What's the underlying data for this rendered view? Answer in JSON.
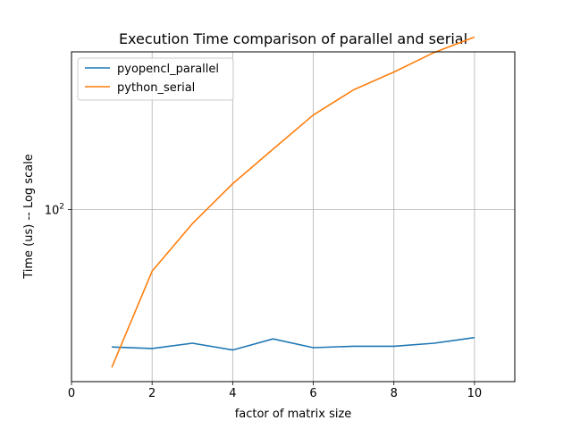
{
  "chart_data": {
    "type": "line",
    "title": "Execution Time comparison of parallel and serial",
    "xlabel": "factor of matrix size",
    "ylabel": "Time (us) -- Log scale",
    "xlim": [
      0,
      11
    ],
    "ylim": [
      24,
      370
    ],
    "yscale": "log",
    "grid": true,
    "legend_position": "top-left",
    "x_ticks": [
      0,
      2,
      4,
      6,
      8,
      10
    ],
    "y_ticks": [
      {
        "value": 100,
        "base": "10",
        "exponent": "2"
      }
    ],
    "series": [
      {
        "name": "pyopencl_parallel",
        "color": "#1f77b4",
        "x": [
          1,
          2,
          3,
          4,
          5,
          6,
          7,
          8,
          9,
          10
        ],
        "y": [
          32.0,
          31.6,
          33.0,
          31.2,
          34.2,
          31.8,
          32.2,
          32.2,
          33.0,
          34.6
        ]
      },
      {
        "name": "python_serial",
        "color": "#ff7f0e",
        "x": [
          1,
          2,
          3,
          4,
          5,
          6,
          7,
          8,
          9,
          10
        ],
        "y": [
          27.0,
          60.0,
          89.0,
          124.0,
          165.0,
          219.0,
          270.0,
          313.0,
          368.0,
          418.0
        ]
      }
    ]
  }
}
